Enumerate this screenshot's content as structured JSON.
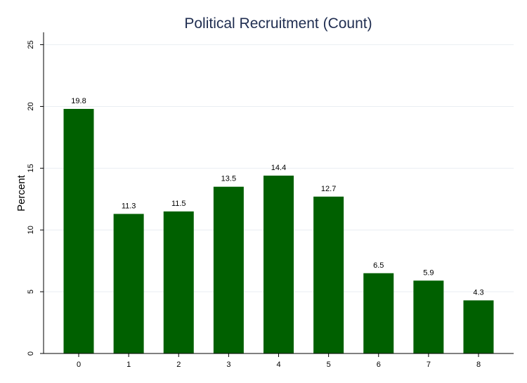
{
  "chart_data": {
    "type": "bar",
    "title": "Political Recruitment (Count)",
    "xlabel": "",
    "ylabel": "Percent",
    "categories": [
      "0",
      "1",
      "2",
      "3",
      "4",
      "5",
      "6",
      "7",
      "8"
    ],
    "values": [
      19.8,
      11.3,
      11.5,
      13.5,
      14.4,
      12.7,
      6.5,
      5.9,
      4.3
    ],
    "data_labels": [
      "19.8",
      "11.3",
      "11.5",
      "13.5",
      "14.4",
      "12.7",
      "6.5",
      "5.9",
      "4.3"
    ],
    "yticks": [
      "0",
      "5",
      "10",
      "15",
      "20",
      "25"
    ],
    "ylim": [
      0,
      26
    ],
    "grid": true,
    "legend": "none",
    "bar_color": "#006000"
  }
}
